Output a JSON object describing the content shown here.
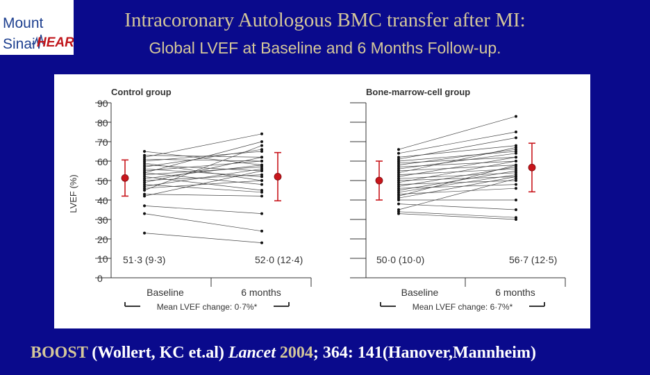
{
  "logo": {
    "line1": "Mount",
    "line2": "Sinai",
    "heart": "HEART"
  },
  "header": {
    "title": "Intracoronary Autologous BMC transfer after MI:",
    "subtitle": "Global LVEF at Baseline and 6 Months Follow-up."
  },
  "footer": {
    "study": "BOOST",
    "authors": "(Wollert, KC et.al)",
    "journal": "Lancet",
    "year": "2004",
    "rest": "; 364: 141(Hanover,Mannheim)"
  },
  "chart_data": [
    {
      "type": "line",
      "title": "Control group",
      "ylabel": "LVEF (%)",
      "ylim": [
        0,
        90
      ],
      "yticks": [
        0,
        10,
        20,
        30,
        40,
        50,
        60,
        70,
        80,
        90
      ],
      "categories": [
        "Baseline",
        "6 months"
      ],
      "axis_caption": "Mean LVEF change: 0·7%*",
      "summary": [
        {
          "label": "51·3 (9·3)",
          "mean": 51.3,
          "sd": 9.3
        },
        {
          "label": "52·0 (12·4)",
          "mean": 52.0,
          "sd": 12.4
        }
      ],
      "patients": [
        [
          65,
          58
        ],
        [
          63,
          62
        ],
        [
          62,
          74
        ],
        [
          61,
          60
        ],
        [
          60,
          65
        ],
        [
          59,
          50
        ],
        [
          58,
          55
        ],
        [
          57,
          66
        ],
        [
          56,
          52
        ],
        [
          55,
          60
        ],
        [
          54,
          48
        ],
        [
          54,
          70
        ],
        [
          53,
          57
        ],
        [
          52,
          45
        ],
        [
          51,
          58
        ],
        [
          50,
          53
        ],
        [
          49,
          62
        ],
        [
          48,
          44
        ],
        [
          47,
          56
        ],
        [
          46,
          50
        ],
        [
          45,
          68
        ],
        [
          43,
          42
        ],
        [
          42,
          55
        ],
        [
          37,
          33
        ],
        [
          33,
          24
        ],
        [
          23,
          18
        ]
      ]
    },
    {
      "type": "line",
      "title": "Bone-marrow-cell group",
      "ylabel": "",
      "ylim": [
        0,
        90
      ],
      "yticks": [
        0,
        10,
        20,
        30,
        40,
        50,
        60,
        70,
        80,
        90
      ],
      "categories": [
        "Baseline",
        "6 months"
      ],
      "axis_caption": "Mean LVEF change: 6·7%*",
      "summary": [
        {
          "label": "50·0 (10·0)",
          "mean": 50.0,
          "sd": 10.0
        },
        {
          "label": "56·7 (12·5)",
          "mean": 56.7,
          "sd": 12.5
        }
      ],
      "patients": [
        [
          66,
          83
        ],
        [
          64,
          75
        ],
        [
          62,
          68
        ],
        [
          61,
          72
        ],
        [
          60,
          65
        ],
        [
          59,
          62
        ],
        [
          58,
          66
        ],
        [
          57,
          60
        ],
        [
          56,
          64
        ],
        [
          55,
          58
        ],
        [
          54,
          67
        ],
        [
          53,
          56
        ],
        [
          52,
          62
        ],
        [
          51,
          54
        ],
        [
          50,
          52
        ],
        [
          49,
          60
        ],
        [
          48,
          50
        ],
        [
          47,
          57
        ],
        [
          46,
          48
        ],
        [
          45,
          55
        ],
        [
          44,
          53
        ],
        [
          43,
          46
        ],
        [
          42,
          58
        ],
        [
          41,
          52
        ],
        [
          40,
          40
        ],
        [
          38,
          35
        ],
        [
          35,
          51
        ],
        [
          34,
          31
        ],
        [
          33,
          30
        ]
      ]
    }
  ]
}
